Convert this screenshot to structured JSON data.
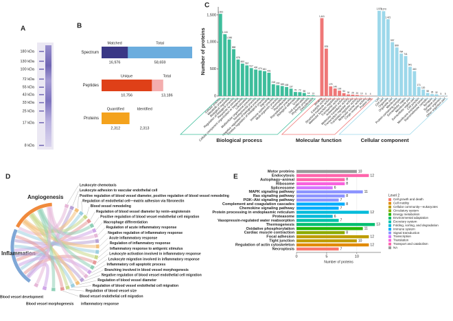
{
  "panel_labels": [
    "A",
    "B",
    "C",
    "D",
    "E"
  ],
  "chart_data": [
    {
      "type": "gel",
      "markers": [
        {
          "value": 180,
          "label": "180 kDa"
        },
        {
          "value": 130,
          "label": "130 kDa"
        },
        {
          "value": 100,
          "label": "100 kDa"
        },
        {
          "value": 72,
          "label": "72 kDa"
        },
        {
          "value": 55,
          "label": "55 kDa"
        },
        {
          "value": 43,
          "label": "43 kDa"
        },
        {
          "value": 33,
          "label": "33 kDa"
        },
        {
          "value": 25,
          "label": "25 kDa"
        },
        {
          "value": 17,
          "label": "17 kDa"
        },
        {
          "value": 8,
          "label": "8 kDa"
        }
      ],
      "color": "#5a4fa8"
    },
    {
      "type": "overlap-bar",
      "rows": [
        {
          "label": "Spectrum",
          "parts": [
            {
              "name": "Matched",
              "value": 16976,
              "value_label": "16,976",
              "color": "#3a3886"
            },
            {
              "name": "Total",
              "value": 58659,
              "value_label": "58,659",
              "color": "#6badde"
            }
          ]
        },
        {
          "label": "Peptides",
          "parts": [
            {
              "name": "Unique",
              "value": 10756,
              "value_label": "10,756",
              "color": "#df4018"
            },
            {
              "name": "Total",
              "value": 13186,
              "value_label": "13,186",
              "color": "#f4aeae"
            }
          ]
        },
        {
          "label": "Proteins",
          "parts": [
            {
              "name": "Quantified",
              "value": 2312,
              "value_label": "2,312",
              "color": "#f4a21c"
            },
            {
              "name": "Identified",
              "value": 2313,
              "value_label": "2,313",
              "color": "#f8c880"
            }
          ]
        }
      ]
    },
    {
      "type": "grouped-bar",
      "ylabel": "Number of proteins",
      "ylim": [
        0,
        1650
      ],
      "yticks": [
        0,
        500,
        {
          "value": 1000,
          "label": "1,000"
        },
        {
          "value": 1500,
          "label": "1,500"
        }
      ],
      "groups": [
        {
          "name": "Biological process",
          "color": "#3dbd9b",
          "categories": [
            "Cellular process",
            "Metabolic process",
            "Biological regulation",
            "Regulation of biological process",
            "Response to stimulus",
            "Cellular component organization or biogenesis",
            "Localization",
            "Multicellular organismal process",
            "Developmental process",
            "Negative regulation of biological process",
            "Positive regulation of biological process",
            "Signaling",
            "Immune system process",
            "Multi-organism process",
            "Locomotion",
            "Reproduction",
            "Reproductive process",
            "Biological adhesion",
            "Growth",
            "Cell proliferation",
            "Rhythmic process",
            "Detoxification"
          ],
          "values": [
            1521,
            1144,
            1046,
            868,
            676,
            600,
            567,
            517,
            490,
            474,
            461,
            431,
            218,
            200,
            185,
            168,
            137,
            75,
            72,
            58,
            14,
            13
          ],
          "value_labels": [
            "1,521",
            "1,144",
            "1,046",
            "868",
            "676",
            "600",
            "567",
            "517",
            "490",
            "474",
            "461",
            "431",
            "218",
            "200",
            "185",
            "168",
            "137",
            "75",
            "72",
            "58",
            "14",
            "13"
          ]
        },
        {
          "name": "Molecular function",
          "color": "#ef7777",
          "categories": [
            "Binding",
            "Catalytic activity",
            "Structural molecule activity",
            "Molecular function regulator",
            "Transporter activity",
            "Antioxidant activity",
            "Molecular transducer activity",
            "Transcription regulator activity",
            "Translation regulator activity",
            "Molecular carrier activity",
            "Cargo receptor activity",
            "Protein tag"
          ],
          "values": [
            1441,
            878,
            179,
            140,
            100,
            54,
            30,
            25,
            20,
            10,
            5,
            4
          ],
          "value_labels": [
            "1,441",
            "878",
            "179",
            "140",
            "100",
            "54",
            "30",
            "25",
            "20",
            "10",
            "5",
            "4"
          ]
        },
        {
          "name": "Cellular component",
          "color": "#9dd8ea",
          "categories": [
            "Cell",
            "Cell part",
            "Organelle",
            "Organelle part",
            "Membrane",
            "Protein-containing complex",
            "Extracellular region",
            "Membrane part",
            "Extracellular region part",
            "Cell junction",
            "Membrane-enclosed lumen",
            "Supramolecular complex",
            "Synapse",
            "Synapse part",
            "Other organism",
            "Other organism part"
          ],
          "values": [
            1578,
            1570,
            1421,
            997,
            899,
            784,
            741,
            541,
            460,
            171,
            120,
            58,
            35,
            32,
            5,
            5
          ],
          "value_labels": [
            "1,578",
            "1,570",
            "1,421",
            "997",
            "899",
            "784",
            "741",
            "541",
            "460",
            "171",
            "120",
            "58",
            "35",
            "32",
            "5",
            "5"
          ]
        }
      ]
    },
    {
      "type": "chord",
      "groups": [
        {
          "name": "Angiogenesis",
          "color": "#f08a3c"
        },
        {
          "name": "Inflammation",
          "color": "#7fa7d6"
        }
      ],
      "terms": [
        "Leukocyte chemotaxis",
        "Leukocyte adhesion to vascular endothelial cell",
        "Positive regulation of blood vessel diameter, positive regulation of blood vessel remodeling",
        "Regulation of endothelial cell—matrix adhesion via fibronectin",
        "Blood vessel remodeling",
        "Regulation of blood vessel diameter by renin–angiotensin",
        "Positive regulation of blood vessel endothelial cell migration",
        "Macrophage differentiation",
        "Regulation of acute inflammatory response",
        "Negative regulation of inflammatory response",
        "Acute inflammatory response",
        "Regulation of inflammatory response",
        "Inflammatory response to antigenic stimulus",
        "Leukocyte activation involved in inflammatory response",
        "Leukocyte migration involved in inflammatory response",
        "Inflammatory cell apoptotic process",
        "Branching involved in blood vessel morphogenesis",
        "Negative regulation of blood vessel endothelial cell migration",
        "Regulation of blood vessel diameter",
        "Regulation of blood vessel endothelial cell migration",
        "Regulation of blood vessel size",
        "Blood vessel endothelial cell migration",
        "inflammatory response",
        "Blood vessel morphogenesis",
        "Blood vessel development"
      ],
      "palette": [
        "#e6b8d8",
        "#b9a3d6",
        "#f3c07a",
        "#9ccfe0",
        "#c8d98a",
        "#e79a9a",
        "#8fd0b7",
        "#d0a8e8"
      ]
    },
    {
      "type": "hbar",
      "xlabel": "Number of proteins",
      "xlim": [
        0,
        14
      ],
      "xticks": [
        0,
        5,
        10
      ],
      "categories": [
        "Motor proteins",
        "Endocytosis",
        "Autophagy–animal",
        "Ribosome",
        "Spliceosome",
        "MAPK signaling pathway",
        "Ras signaling pathway",
        "PI3K–Akt signaling pathway",
        "Complement and coagulation cascades",
        "Chemokine signaling pathway",
        "Protein processing in endoplasmic reticulum",
        "Proteasome",
        "Vasopressin-regulated water reabsorption",
        "Thermogenesis",
        "Oxidative phosphorylation",
        "Cardiac muscle contraction",
        "Focal adhesion",
        "Tight junction",
        "Regulation of actin cytoskeleton",
        "Necroptosis"
      ],
      "values": [
        10,
        12,
        8,
        8,
        6,
        11,
        8,
        7,
        8,
        7,
        12,
        6,
        7,
        13,
        11,
        8,
        12,
        10,
        12,
        7
      ],
      "colors": [
        "#999999",
        "#ff65ac",
        "#ff65ac",
        "#f962dd",
        "#d575fe",
        "#8b93ff",
        "#8b93ff",
        "#8b93ff",
        "#00acfc",
        "#00acfc",
        "#00bbda",
        "#00bbda",
        "#00c1ab",
        "#00be70",
        "#24b700",
        "#8cab00",
        "#be9c00",
        "#be9c00",
        "#e18a00",
        "#f8766d"
      ],
      "label_colors": [
        "#222222",
        "#222222",
        "#e0202a",
        "#222222",
        "#222222",
        "#e0202a",
        "#222222",
        "#e0202a",
        "#222222",
        "#222222",
        "#222222",
        "#222222",
        "#222222",
        "#222222",
        "#222222",
        "#222222",
        "#222222",
        "#222222",
        "#222222",
        "#222222"
      ],
      "legend_title": "Level 2",
      "legend": [
        {
          "name": "Cell growth and death",
          "color": "#f8766d"
        },
        {
          "name": "Cell motility",
          "color": "#e18a00"
        },
        {
          "name": "Cellular community—eukaryotes",
          "color": "#be9c00"
        },
        {
          "name": "Circulatory system",
          "color": "#8cab00"
        },
        {
          "name": "Energy metabolism",
          "color": "#24b700"
        },
        {
          "name": "Environmental adaptation",
          "color": "#00be70"
        },
        {
          "name": "Excretory system",
          "color": "#00c1ab"
        },
        {
          "name": "Folding, sorting, and degradation",
          "color": "#00bbda"
        },
        {
          "name": "Immune system",
          "color": "#00acfc"
        },
        {
          "name": "Signal transduction",
          "color": "#8b93ff"
        },
        {
          "name": "Transcription",
          "color": "#d575fe"
        },
        {
          "name": "Translation",
          "color": "#f962dd"
        },
        {
          "name": "Transport and catabolism",
          "color": "#ff65ac"
        },
        {
          "name": "NA",
          "color": "#999999"
        }
      ]
    }
  ]
}
